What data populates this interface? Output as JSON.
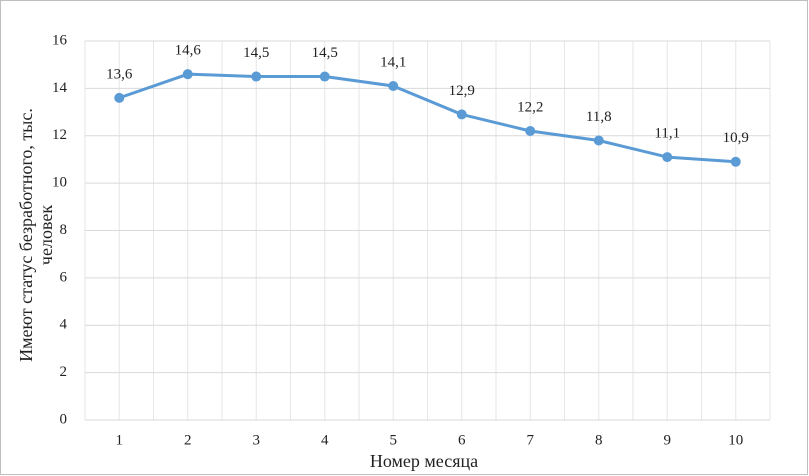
{
  "chart_data": {
    "type": "line",
    "categories": [
      "1",
      "2",
      "3",
      "4",
      "5",
      "6",
      "7",
      "8",
      "9",
      "10"
    ],
    "series": [
      {
        "color": "#5b9bd5",
        "values": [
          13.6,
          14.6,
          14.5,
          14.5,
          14.1,
          12.9,
          12.2,
          11.8,
          11.1,
          10.9
        ],
        "value_labels": [
          "13,6",
          "14,6",
          "14,5",
          "14,5",
          "14,1",
          "12,9",
          "12,2",
          "11,8",
          "11,1",
          "10,9"
        ]
      }
    ],
    "ylim": [
      0,
      16
    ],
    "yticks": [
      0,
      2,
      4,
      6,
      8,
      10,
      12,
      14,
      16
    ],
    "grid": true,
    "xlabel": "Номер месяца",
    "ylabel": [
      "Имеют статус безработного, тыс.",
      "человек"
    ]
  }
}
